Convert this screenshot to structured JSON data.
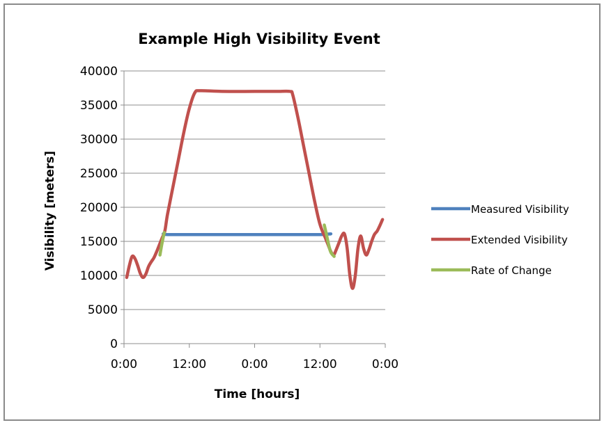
{
  "chart_data": {
    "type": "line",
    "title": "Example High Visibility Event",
    "xlabel": "Time [hours]",
    "ylabel": "Visibility [meters]",
    "ylim": [
      0,
      40000
    ],
    "xlim": [
      0,
      48
    ],
    "x_ticks": [
      0,
      12,
      24,
      36,
      48
    ],
    "x_tick_labels": [
      "0:00",
      "12:00",
      "0:00",
      "12:00",
      "0:00"
    ],
    "y_ticks": [
      0,
      5000,
      10000,
      15000,
      20000,
      25000,
      30000,
      35000,
      40000
    ],
    "y_tick_labels": [
      "0",
      "5000",
      "10000",
      "15000",
      "20000",
      "25000",
      "30000",
      "35000",
      "40000"
    ],
    "grid": "horizontal",
    "legend_position": "right",
    "series": [
      {
        "name": "Measured Visibility",
        "color": "#4f81bd",
        "x": [
          7.2,
          8,
          12,
          24,
          30,
          36,
          38.0
        ],
        "y": [
          16100,
          16000,
          16000,
          16000,
          16000,
          16000,
          16100
        ]
      },
      {
        "name": "Extended Visibility",
        "color": "#c0504d",
        "x": [
          0.5,
          1.0,
          1.5,
          2.0,
          2.5,
          3.0,
          3.5,
          4.0,
          4.5,
          5.0,
          5.5,
          6.0,
          6.5,
          7.0,
          7.5,
          8,
          9,
          10,
          11,
          12,
          13,
          14,
          18,
          24,
          28,
          30.5,
          31,
          32,
          33,
          34,
          35,
          36,
          37,
          37.5,
          38,
          38.5,
          39,
          39.5,
          40,
          40.5,
          41,
          41.5,
          42,
          42.5,
          43,
          43.5,
          44,
          44.5,
          45,
          45.5,
          46,
          46.5,
          47,
          47.5
        ],
        "y": [
          9700,
          11500,
          12800,
          12500,
          11500,
          10300,
          9700,
          10200,
          11300,
          12000,
          12600,
          13500,
          14500,
          15500,
          16500,
          19000,
          23000,
          27000,
          31000,
          34500,
          36800,
          37100,
          37000,
          37000,
          37000,
          37000,
          36500,
          33000,
          29000,
          25000,
          21000,
          17500,
          15500,
          14500,
          13500,
          13000,
          13800,
          14800,
          15800,
          16100,
          14000,
          10000,
          8100,
          10000,
          14000,
          15800,
          14000,
          13000,
          13800,
          15000,
          16000,
          16500,
          17300,
          18200
        ]
      },
      {
        "name": "Rate of Change",
        "color": "#9bbb59",
        "segments": [
          {
            "x": [
              6.6,
              7.0,
              7.4
            ],
            "y": [
              13000,
              14800,
              16300
            ]
          },
          {
            "x": [
              36.8,
              37.2,
              37.6,
              38.0,
              38.6
            ],
            "y": [
              17400,
              16000,
              14500,
              13400,
              12800
            ]
          }
        ]
      }
    ]
  }
}
